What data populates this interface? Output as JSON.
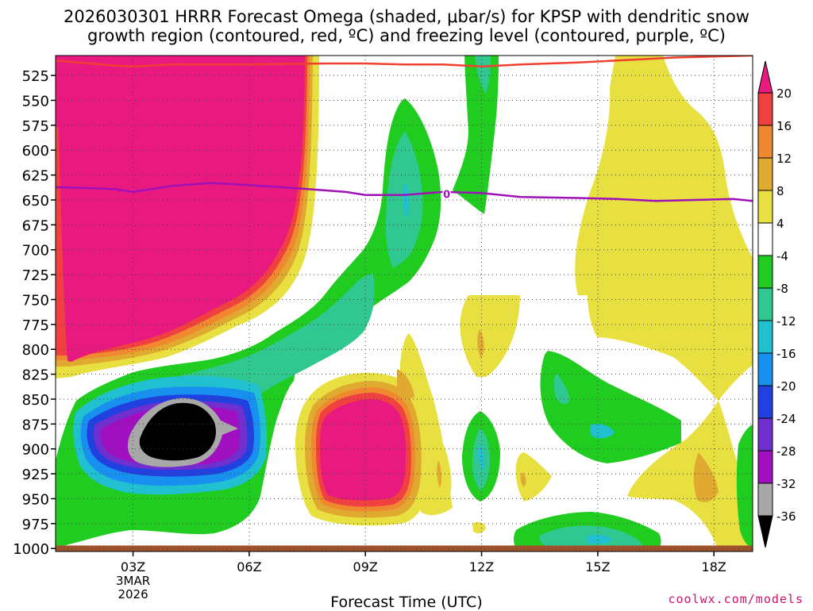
{
  "title_line1": "2026030301 HRRR Forecast Omega (shaded, μbar/s) for KPSP with dendritic snow",
  "title_line2": "growth region (contoured, red, ºC) and freezing level (contoured, purple, ºC)",
  "xlabel": "Forecast Time (UTC)",
  "credit": "coolwx.com/models",
  "chart_data": {
    "type": "heatmap",
    "x_axis": {
      "ticks": [
        "03Z",
        "06Z",
        "09Z",
        "12Z",
        "15Z",
        "18Z"
      ],
      "tick_hours": [
        3,
        6,
        9,
        12,
        15,
        18
      ],
      "first_tick_sublabel": [
        "3MAR",
        "2026"
      ],
      "range_hours": [
        1.0,
        19.0
      ]
    },
    "y_axis": {
      "ticks": [
        525,
        550,
        575,
        600,
        625,
        650,
        675,
        700,
        725,
        750,
        775,
        800,
        825,
        850,
        875,
        900,
        925,
        950,
        975,
        1000
      ],
      "range_hPa": [
        1003,
        505
      ],
      "inverted": true,
      "grid": "dotted"
    },
    "colorbar": {
      "labels": [
        "20",
        "16",
        "12",
        "8",
        "4",
        "-4",
        "-8",
        "-12",
        "-16",
        "-20",
        "-24",
        "-28",
        "-32",
        "-36"
      ],
      "bands": [
        {
          "range": ">20",
          "color": "#e8197f"
        },
        {
          "range": "16..20",
          "color": "#f04040"
        },
        {
          "range": "12..16",
          "color": "#f08830"
        },
        {
          "range": "8..12",
          "color": "#e0aa30"
        },
        {
          "range": "4..8",
          "color": "#e8e040"
        },
        {
          "range": "-4..4",
          "color": "#ffffff"
        },
        {
          "range": "-8..-4",
          "color": "#20cc20"
        },
        {
          "range": "-12..-8",
          "color": "#30c890"
        },
        {
          "range": "-16..-12",
          "color": "#20c0d0"
        },
        {
          "range": "-20..-16",
          "color": "#1890f0"
        },
        {
          "range": "-24..-20",
          "color": "#2040e0"
        },
        {
          "range": "-28..-24",
          "color": "#7030d0"
        },
        {
          "range": "-32..-28",
          "color": "#a010c0"
        },
        {
          "range": "-36..-32",
          "color": "#a8a8a8"
        },
        {
          "range": "<-36",
          "color": "#000000"
        }
      ]
    },
    "freezing_level": {
      "label": "0",
      "color": "#a010b8",
      "points": [
        [
          1.0,
          637
        ],
        [
          2.5,
          639
        ],
        [
          3.0,
          642
        ],
        [
          4.0,
          636
        ],
        [
          5.0,
          633
        ],
        [
          6.0,
          635
        ],
        [
          7.5,
          639
        ],
        [
          8.5,
          642
        ],
        [
          9.0,
          645
        ],
        [
          10.0,
          645
        ],
        [
          11.0,
          642
        ],
        [
          12.0,
          643
        ],
        [
          13.0,
          647
        ],
        [
          14.5,
          648
        ],
        [
          15.5,
          649
        ],
        [
          16.5,
          651
        ],
        [
          17.5,
          650
        ],
        [
          18.5,
          649
        ],
        [
          19.0,
          651
        ]
      ]
    },
    "dgz_contour": {
      "color": "#f04030",
      "points": [
        [
          1.0,
          510
        ],
        [
          2.5,
          515
        ],
        [
          3.0,
          516
        ],
        [
          4.0,
          514
        ],
        [
          6.0,
          514
        ],
        [
          8.0,
          513
        ],
        [
          9.0,
          513
        ],
        [
          10.0,
          514
        ],
        [
          11.0,
          514
        ],
        [
          12.0,
          516
        ],
        [
          13.0,
          514
        ],
        [
          14.5,
          512
        ],
        [
          16.0,
          509
        ],
        [
          17.0,
          507
        ],
        [
          18.0,
          506
        ],
        [
          19.0,
          505
        ]
      ]
    },
    "surface_band": {
      "color": "#a0522d",
      "top_hPa": 997
    }
  }
}
